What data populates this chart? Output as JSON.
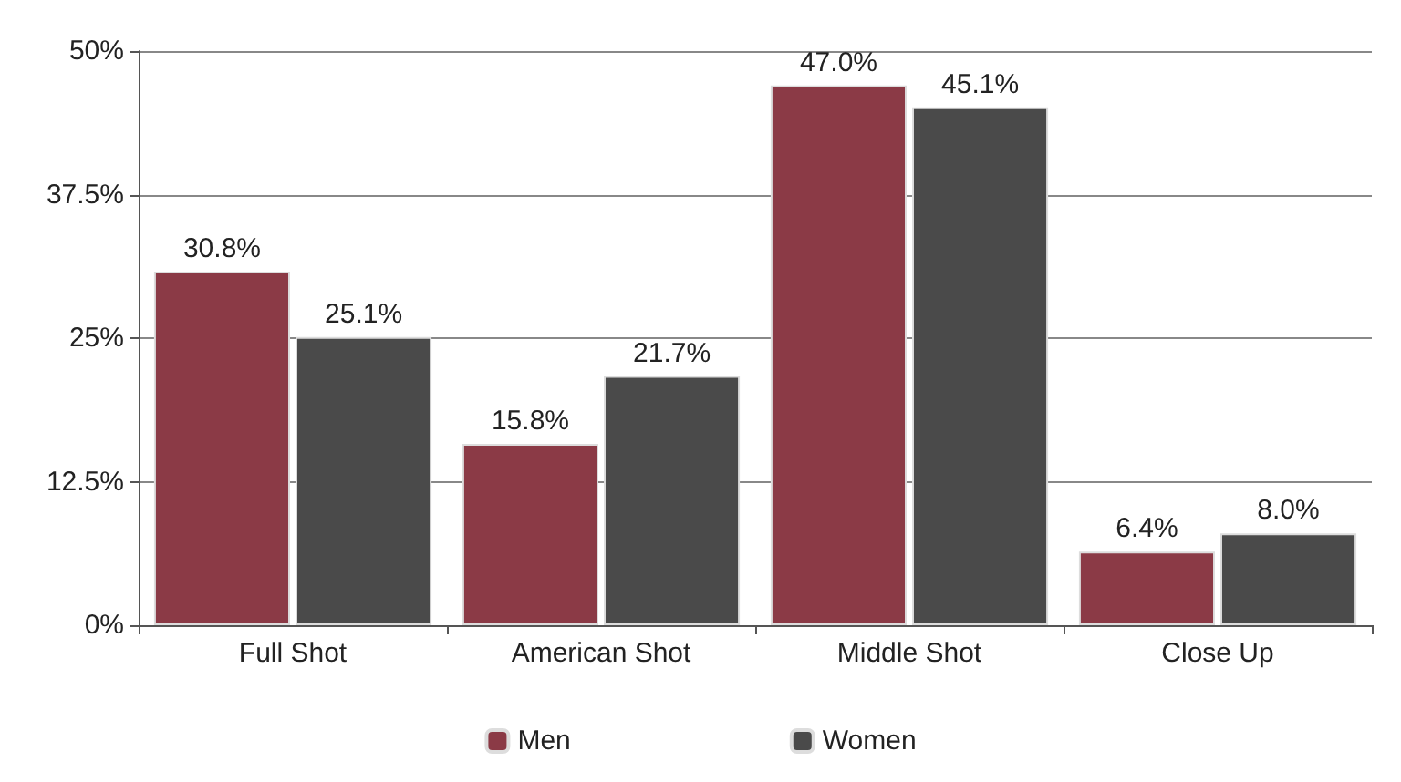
{
  "chart_data": {
    "type": "bar",
    "categories": [
      "Full Shot",
      "American Shot",
      "Middle Shot",
      "Close Up"
    ],
    "series": [
      {
        "name": "Men",
        "color": "#8b3a46",
        "values": [
          30.8,
          15.8,
          47.0,
          6.4
        ],
        "value_labels": [
          "30.8%",
          "15.8%",
          "47.0%",
          "6.4%"
        ]
      },
      {
        "name": "Women",
        "color": "#4a4a4a",
        "values": [
          25.1,
          21.7,
          45.1,
          8.0
        ],
        "value_labels": [
          "25.1%",
          "21.7%",
          "45.1%",
          "8.0%"
        ]
      }
    ],
    "ylim": [
      0,
      50
    ],
    "yticks": [
      {
        "value": 0,
        "label": "0%"
      },
      {
        "value": 12.5,
        "label": "12.5%"
      },
      {
        "value": 25,
        "label": "25%"
      },
      {
        "value": 37.5,
        "label": "37.5%"
      },
      {
        "value": 50,
        "label": "50%"
      }
    ],
    "grid": "y",
    "legend": "bottom"
  }
}
